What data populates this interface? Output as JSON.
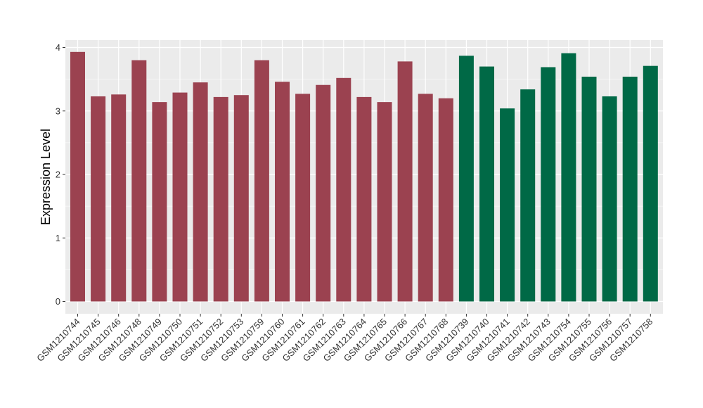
{
  "chart_data": {
    "type": "bar",
    "title": "",
    "xlabel": "",
    "ylabel": "Expression Level",
    "ylim": [
      0,
      4.0
    ],
    "yticks": [
      0,
      1,
      2,
      3,
      4
    ],
    "grid": true,
    "panel_background": "#ebebeb",
    "grid_color": "#ffffff",
    "categories": [
      "GSM1210744",
      "GSM1210745",
      "GSM1210746",
      "GSM1210748",
      "GSM1210749",
      "GSM1210750",
      "GSM1210751",
      "GSM1210752",
      "GSM1210753",
      "GSM1210759",
      "GSM1210760",
      "GSM1210761",
      "GSM1210762",
      "GSM1210763",
      "GSM1210764",
      "GSM1210765",
      "GSM1210766",
      "GSM1210767",
      "GSM1210768",
      "GSM1210739",
      "GSM1210740",
      "GSM1210741",
      "GSM1210742",
      "GSM1210743",
      "GSM1210754",
      "GSM1210755",
      "GSM1210756",
      "GSM1210757",
      "GSM1210758"
    ],
    "values": [
      3.93,
      3.23,
      3.26,
      3.8,
      3.14,
      3.29,
      3.45,
      3.22,
      3.25,
      3.8,
      3.46,
      3.27,
      3.41,
      3.52,
      3.22,
      3.14,
      3.78,
      3.27,
      3.2,
      3.87,
      3.7,
      3.04,
      3.34,
      3.69,
      3.91,
      3.54,
      3.23,
      3.54,
      3.71
    ],
    "bar_colors": [
      "#9b4250",
      "#9b4250",
      "#9b4250",
      "#9b4250",
      "#9b4250",
      "#9b4250",
      "#9b4250",
      "#9b4250",
      "#9b4250",
      "#9b4250",
      "#9b4250",
      "#9b4250",
      "#9b4250",
      "#9b4250",
      "#9b4250",
      "#9b4250",
      "#9b4250",
      "#9b4250",
      "#9b4250",
      "#006946",
      "#006946",
      "#006946",
      "#006946",
      "#006946",
      "#006946",
      "#006946",
      "#006946",
      "#006946",
      "#006946"
    ]
  }
}
